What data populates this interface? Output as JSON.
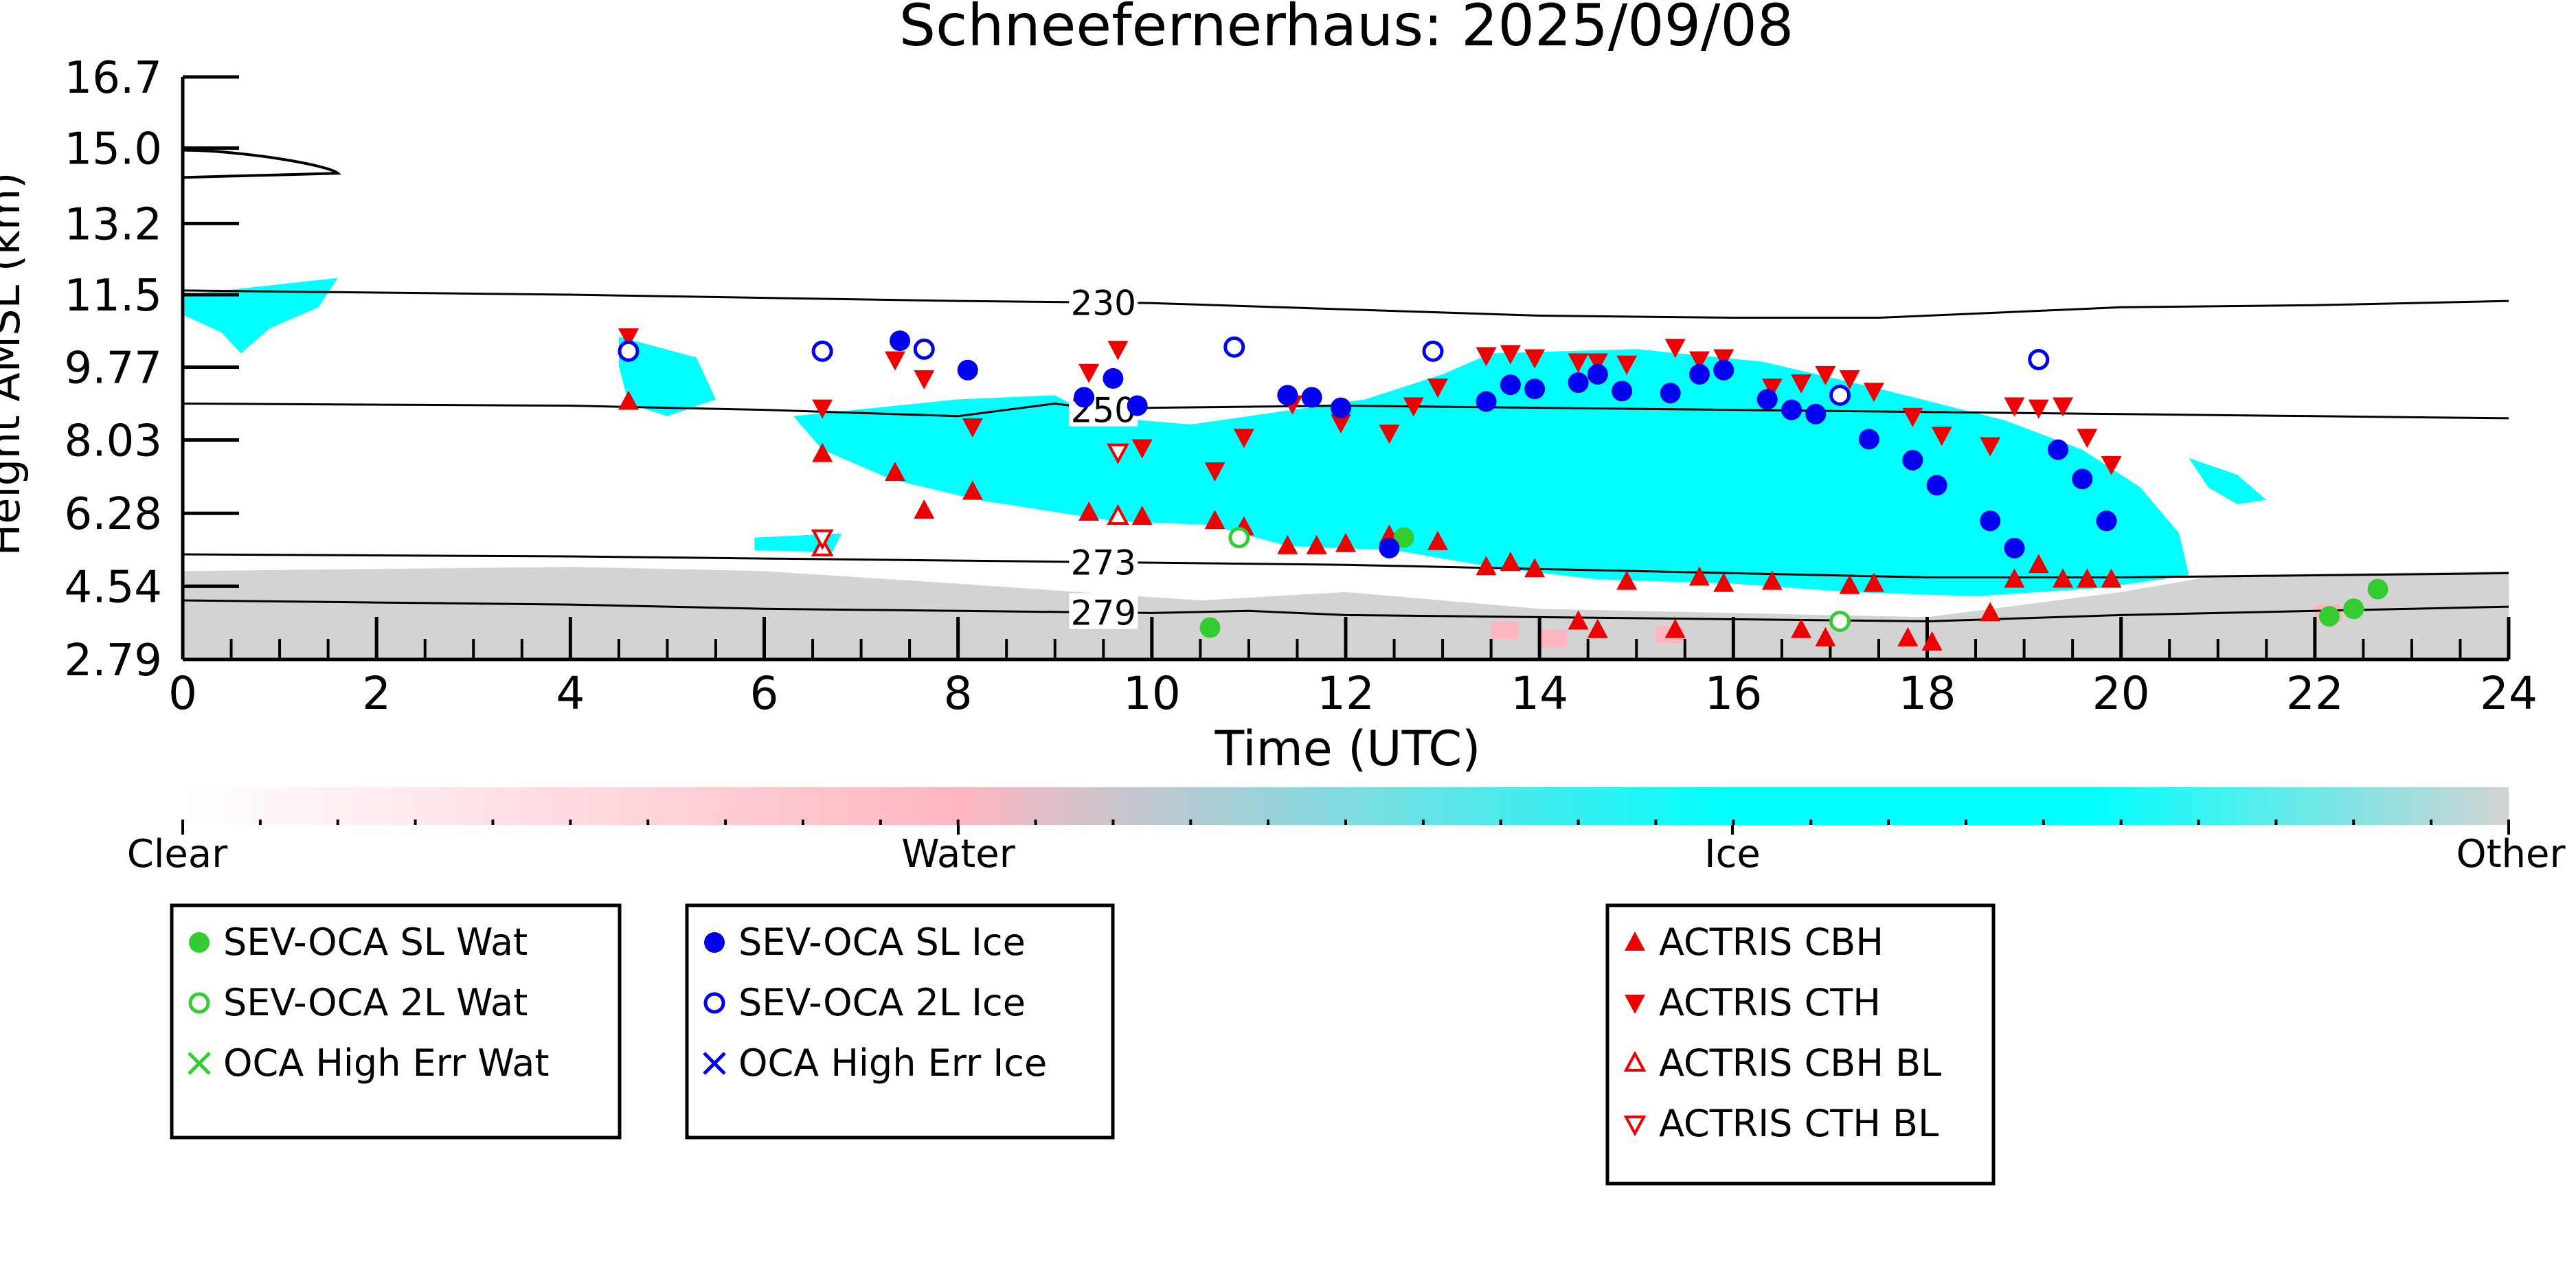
{
  "chart_data": {
    "type": "scatter",
    "title": "Schneefernerhaus: 2025/09/08",
    "xlabel": "Time (UTC)",
    "ylabel": "Height AMSL (km)",
    "xlim": [
      0,
      24
    ],
    "ylim": [
      2.79,
      16.7
    ],
    "x_ticks": [
      0,
      2,
      4,
      6,
      8,
      10,
      12,
      14,
      16,
      18,
      20,
      22,
      24
    ],
    "y_ticks": [
      "2.79",
      "4.54",
      "6.28",
      "8.03",
      "9.77",
      "11.5",
      "13.2",
      "15.0",
      "16.7"
    ],
    "colorbar": {
      "labels": [
        "Clear",
        "Water",
        "Ice",
        "Other"
      ],
      "colors": {
        "clear": "#ffffff",
        "water": "#ffb6c1",
        "ice": "#00ffff",
        "other": "#d3d3d3"
      }
    },
    "contours": [
      {
        "label": "230",
        "label_x": 9.5,
        "points": [
          [
            0,
            11.6
          ],
          [
            4,
            11.5
          ],
          [
            8,
            11.35
          ],
          [
            10,
            11.3
          ],
          [
            12,
            11.15
          ],
          [
            14,
            11.0
          ],
          [
            16,
            10.95
          ],
          [
            17.5,
            10.95
          ],
          [
            18.5,
            11.05
          ],
          [
            20,
            11.2
          ],
          [
            22,
            11.25
          ],
          [
            24,
            11.35
          ]
        ]
      },
      {
        "label": "250",
        "label_x": 9.5,
        "points": [
          [
            0,
            8.9
          ],
          [
            4,
            8.85
          ],
          [
            6,
            8.75
          ],
          [
            8,
            8.6
          ],
          [
            9,
            8.9
          ],
          [
            9.5,
            8.75
          ],
          [
            10,
            8.8
          ],
          [
            12,
            8.85
          ],
          [
            14,
            8.8
          ],
          [
            16,
            8.75
          ],
          [
            18,
            8.7
          ],
          [
            20,
            8.65
          ],
          [
            22,
            8.6
          ],
          [
            24,
            8.55
          ]
        ]
      },
      {
        "label": "273",
        "label_x": 9.5,
        "points": [
          [
            0,
            5.3
          ],
          [
            4,
            5.25
          ],
          [
            6,
            5.2
          ],
          [
            8,
            5.15
          ],
          [
            10,
            5.1
          ],
          [
            12,
            5.05
          ],
          [
            14,
            4.95
          ],
          [
            16,
            4.85
          ],
          [
            18,
            4.75
          ],
          [
            20,
            4.75
          ],
          [
            22,
            4.8
          ],
          [
            24,
            4.85
          ]
        ]
      },
      {
        "label": "279",
        "label_x": 9.5,
        "points": [
          [
            0,
            4.2
          ],
          [
            2,
            4.15
          ],
          [
            4,
            4.1
          ],
          [
            6,
            4.0
          ],
          [
            8,
            3.95
          ],
          [
            10,
            3.9
          ],
          [
            11,
            3.95
          ],
          [
            12,
            3.85
          ],
          [
            14,
            3.8
          ],
          [
            16,
            3.75
          ],
          [
            18,
            3.7
          ],
          [
            20,
            3.85
          ],
          [
            22,
            3.95
          ],
          [
            24,
            4.05
          ]
        ]
      }
    ],
    "series": [
      {
        "name": "SEV-OCA SL Wat",
        "color": "#33cc33",
        "marker": "filled-circle",
        "points": [
          [
            10.6,
            3.55
          ],
          [
            12.6,
            5.7
          ],
          [
            22.15,
            3.82
          ],
          [
            22.4,
            4.0
          ],
          [
            22.65,
            4.47
          ]
        ]
      },
      {
        "name": "SEV-OCA 2L Wat",
        "color": "#33cc33",
        "marker": "open-circle",
        "points": [
          [
            10.9,
            5.7
          ],
          [
            17.1,
            3.7
          ]
        ]
      },
      {
        "name": "OCA High Err Wat",
        "color": "#33cc33",
        "marker": "x",
        "points": []
      },
      {
        "name": "SEV-OCA SL Ice",
        "color": "#0000ee",
        "marker": "filled-circle",
        "points": [
          [
            7.4,
            10.4
          ],
          [
            8.1,
            9.7
          ],
          [
            9.3,
            9.05
          ],
          [
            9.6,
            9.5
          ],
          [
            9.85,
            8.85
          ],
          [
            11.4,
            9.1
          ],
          [
            11.65,
            9.05
          ],
          [
            11.95,
            8.8
          ],
          [
            12.45,
            5.45
          ],
          [
            13.45,
            8.95
          ],
          [
            13.7,
            9.35
          ],
          [
            13.95,
            9.25
          ],
          [
            14.4,
            9.4
          ],
          [
            14.6,
            9.6
          ],
          [
            14.85,
            9.2
          ],
          [
            15.35,
            9.15
          ],
          [
            15.65,
            9.6
          ],
          [
            15.9,
            9.7
          ],
          [
            16.35,
            9.0
          ],
          [
            16.6,
            8.75
          ],
          [
            16.85,
            8.65
          ],
          [
            17.4,
            8.05
          ],
          [
            17.85,
            7.55
          ],
          [
            18.1,
            6.95
          ],
          [
            18.65,
            6.1
          ],
          [
            18.9,
            5.45
          ],
          [
            19.35,
            7.8
          ],
          [
            19.6,
            7.1
          ],
          [
            19.85,
            6.1
          ]
        ]
      },
      {
        "name": "SEV-OCA 2L Ice",
        "color": "#0000ee",
        "marker": "open-circle",
        "points": [
          [
            4.6,
            10.15
          ],
          [
            6.6,
            10.15
          ],
          [
            7.65,
            10.2
          ],
          [
            10.85,
            10.25
          ],
          [
            12.9,
            10.15
          ],
          [
            17.1,
            9.1
          ],
          [
            19.15,
            9.95
          ]
        ]
      },
      {
        "name": "OCA High Err Ice",
        "color": "#0000ee",
        "marker": "x",
        "points": []
      },
      {
        "name": "ACTRIS CBH",
        "color": "#ee0000",
        "marker": "triangle-up",
        "points": [
          [
            4.6,
            8.95
          ],
          [
            6.6,
            7.7
          ],
          [
            7.35,
            7.25
          ],
          [
            7.65,
            6.35
          ],
          [
            8.15,
            6.8
          ],
          [
            9.35,
            6.3
          ],
          [
            9.9,
            6.2
          ],
          [
            10.65,
            6.1
          ],
          [
            10.95,
            5.95
          ],
          [
            11.4,
            5.5
          ],
          [
            11.7,
            5.5
          ],
          [
            12.0,
            5.55
          ],
          [
            12.45,
            5.75
          ],
          [
            12.95,
            5.6
          ],
          [
            13.45,
            5.0
          ],
          [
            13.7,
            5.1
          ],
          [
            13.95,
            4.95
          ],
          [
            14.4,
            3.7
          ],
          [
            14.6,
            3.5
          ],
          [
            14.9,
            4.65
          ],
          [
            15.4,
            3.5
          ],
          [
            15.65,
            4.75
          ],
          [
            15.9,
            4.6
          ],
          [
            16.4,
            4.65
          ],
          [
            16.7,
            3.5
          ],
          [
            16.95,
            3.3
          ],
          [
            17.2,
            4.55
          ],
          [
            17.45,
            4.6
          ],
          [
            17.8,
            3.3
          ],
          [
            18.05,
            3.2
          ],
          [
            18.65,
            3.9
          ],
          [
            18.9,
            4.7
          ],
          [
            19.15,
            5.05
          ],
          [
            19.4,
            4.7
          ],
          [
            19.65,
            4.7
          ],
          [
            19.9,
            4.7
          ]
        ]
      },
      {
        "name": "ACTRIS CTH",
        "color": "#ee0000",
        "marker": "triangle-down",
        "points": [
          [
            4.6,
            10.5
          ],
          [
            6.6,
            8.8
          ],
          [
            7.35,
            9.95
          ],
          [
            7.65,
            9.5
          ],
          [
            8.15,
            8.35
          ],
          [
            9.35,
            9.65
          ],
          [
            9.65,
            10.2
          ],
          [
            9.9,
            7.85
          ],
          [
            10.65,
            7.3
          ],
          [
            10.95,
            8.1
          ],
          [
            11.45,
            8.9
          ],
          [
            11.95,
            8.45
          ],
          [
            12.45,
            8.2
          ],
          [
            12.7,
            8.85
          ],
          [
            12.95,
            9.3
          ],
          [
            13.45,
            10.05
          ],
          [
            13.7,
            10.1
          ],
          [
            13.95,
            10.0
          ],
          [
            14.4,
            9.9
          ],
          [
            14.6,
            9.9
          ],
          [
            14.9,
            9.85
          ],
          [
            15.4,
            10.25
          ],
          [
            15.65,
            9.95
          ],
          [
            15.9,
            10.0
          ],
          [
            16.4,
            9.3
          ],
          [
            16.7,
            9.4
          ],
          [
            16.95,
            9.6
          ],
          [
            17.2,
            9.5
          ],
          [
            17.45,
            9.2
          ],
          [
            17.85,
            8.6
          ],
          [
            18.15,
            8.15
          ],
          [
            18.65,
            7.9
          ],
          [
            18.9,
            8.85
          ],
          [
            19.15,
            8.8
          ],
          [
            19.4,
            8.85
          ],
          [
            19.65,
            8.1
          ],
          [
            19.9,
            7.45
          ]
        ]
      },
      {
        "name": "ACTRIS CBH BL",
        "color": "#ee0000",
        "marker": "open-triangle-up",
        "points": [
          [
            6.6,
            5.45
          ],
          [
            9.65,
            6.2
          ]
        ]
      },
      {
        "name": "ACTRIS CTH BL",
        "color": "#ee0000",
        "marker": "open-triangle-down",
        "points": [
          [
            6.6,
            5.7
          ],
          [
            9.65,
            7.75
          ]
        ]
      }
    ],
    "legends": [
      [
        "SEV-OCA SL Wat",
        "SEV-OCA 2L Wat",
        "OCA High Err Wat"
      ],
      [
        "SEV-OCA SL Ice",
        "SEV-OCA 2L Ice",
        "OCA High Err Ice"
      ],
      [
        "ACTRIS CBH",
        "ACTRIS CTH",
        "ACTRIS CBH BL",
        "ACTRIS CTH BL"
      ]
    ]
  }
}
